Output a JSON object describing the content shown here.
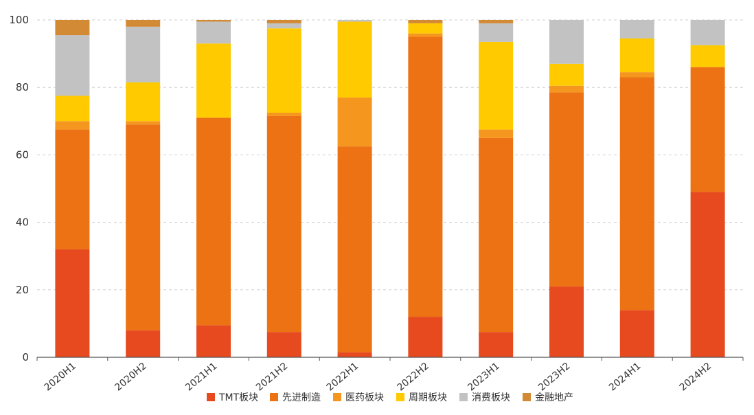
{
  "chart_data": {
    "type": "bar",
    "stacked": true,
    "categories": [
      "2020H1",
      "2020H2",
      "2021H1",
      "2021H2",
      "2022H1",
      "2022H2",
      "2023H1",
      "2023H2",
      "2024H1",
      "2024H2"
    ],
    "series": [
      {
        "name": "TMT板块",
        "color": "#e64a1e",
        "values": [
          32,
          8,
          9.5,
          7.5,
          1.5,
          12,
          7.5,
          21,
          14,
          49
        ]
      },
      {
        "name": "先进制造",
        "color": "#ec7213",
        "values": [
          35.5,
          61,
          61.5,
          64,
          61,
          83,
          57.5,
          57.5,
          69,
          37
        ]
      },
      {
        "name": "医药板块",
        "color": "#f5961e",
        "values": [
          2.5,
          1,
          0,
          1,
          14.5,
          1,
          2.5,
          2,
          1.5,
          0
        ]
      },
      {
        "name": "周期板块",
        "color": "#ffca00",
        "values": [
          7.5,
          11.5,
          22,
          25,
          22.5,
          3,
          26,
          6.5,
          10,
          6.5
        ]
      },
      {
        "name": "消费板块",
        "color": "#c2c2c2",
        "values": [
          18,
          16.5,
          6.5,
          1.5,
          0.5,
          0,
          5.5,
          13,
          5.5,
          7.5
        ]
      },
      {
        "name": "金融地产",
        "color": "#d38a34",
        "values": [
          4.5,
          2,
          0.5,
          1,
          0,
          1,
          1,
          0,
          0,
          0
        ]
      }
    ],
    "ylim": [
      0,
      100
    ],
    "yticks": [
      0,
      20,
      40,
      60,
      80,
      100
    ],
    "grid": true,
    "legend_position": "bottom-center"
  }
}
